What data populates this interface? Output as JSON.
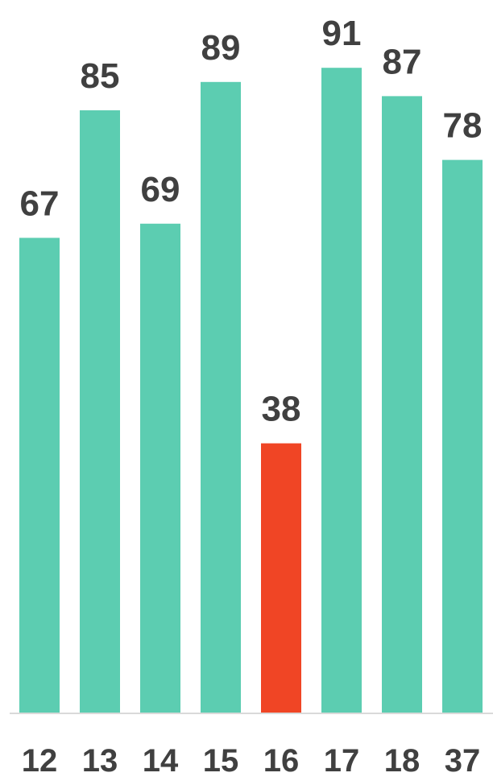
{
  "chart_data": {
    "type": "bar",
    "categories": [
      "12",
      "13",
      "14",
      "15",
      "16",
      "17",
      "18",
      "37"
    ],
    "values": [
      67,
      85,
      69,
      89,
      38,
      91,
      87,
      78
    ],
    "highlight_index": 4,
    "colors": {
      "bar": "#5ccdb1",
      "highlight": "#f04525",
      "axis": "#d9d9d9",
      "text": "#404040"
    },
    "ylim": [
      0,
      100
    ],
    "grid": false,
    "legend": "none",
    "data_labels": true
  }
}
